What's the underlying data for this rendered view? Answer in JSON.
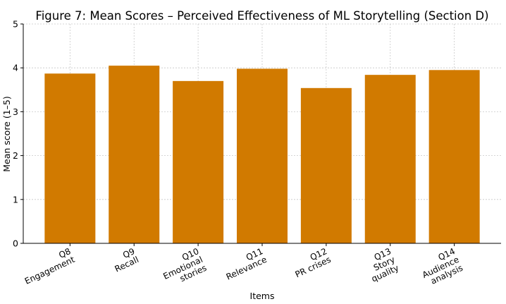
{
  "chart_data": {
    "type": "bar",
    "title": "Figure 7: Mean Scores – Perceived Effectiveness of ML Storytelling (Section D)",
    "xlabel": "Items",
    "ylabel": "Mean score (1–5)",
    "ylim": [
      0,
      5
    ],
    "yticks": [
      0,
      1,
      2,
      3,
      4,
      5
    ],
    "grid": true,
    "bar_color": "#d17a00",
    "categories": [
      [
        "Q8",
        "Engagement"
      ],
      [
        "Q9",
        "Recall"
      ],
      [
        "Q10",
        "Emotional",
        "stories"
      ],
      [
        "Q11",
        "Relevance"
      ],
      [
        "Q12",
        "PR crises"
      ],
      [
        "Q13",
        "Story",
        "quality"
      ],
      [
        "Q14",
        "Audience",
        "analysis"
      ]
    ],
    "values": [
      3.87,
      4.05,
      3.7,
      3.98,
      3.54,
      3.84,
      3.95
    ]
  }
}
